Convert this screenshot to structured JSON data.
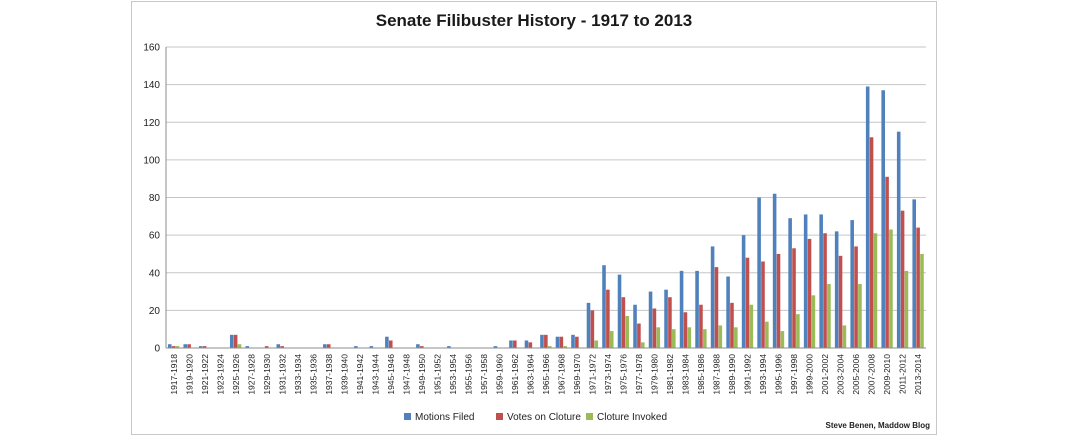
{
  "chart_data": {
    "type": "bar",
    "title": "Senate Filibuster History - 1917 to 2013",
    "xlabel": "",
    "ylabel": "",
    "ylim": [
      0,
      160
    ],
    "yticks": [
      "0",
      "20",
      "40",
      "60",
      "80",
      "100",
      "120",
      "140",
      "160"
    ],
    "grid": true,
    "legend_position": "bottom",
    "credit": "Steve Benen, Maddow Blog",
    "categories": [
      "1917-1918",
      "1919-1920",
      "1921-1922",
      "1923-1924",
      "1925-1926",
      "1927-1928",
      "1929-1930",
      "1931-1932",
      "1933-1934",
      "1935-1936",
      "1937-1938",
      "1939-1940",
      "1941-1942",
      "1943-1944",
      "1945-1946",
      "1947-1948",
      "1949-1950",
      "1951-1952",
      "1953-1954",
      "1955-1956",
      "1957-1958",
      "1959-1960",
      "1961-1962",
      "1963-1964",
      "1965-1966",
      "1967-1968",
      "1969-1970",
      "1971-1972",
      "1973-1974",
      "1975-1976",
      "1977-1978",
      "1979-1980",
      "1981-1982",
      "1983-1984",
      "1985-1986",
      "1987-1988",
      "1989-1990",
      "1991-1992",
      "1993-1994",
      "1995-1996",
      "1997-1998",
      "1999-2000",
      "2001-2002",
      "2003-2004",
      "2005-2006",
      "2007-2008",
      "2009-2010",
      "2011-2012",
      "2013-2014"
    ],
    "series": [
      {
        "name": "Motions Filed",
        "color": "#4f81bd",
        "values": [
          2,
          2,
          1,
          0,
          7,
          1,
          0,
          2,
          0,
          0,
          2,
          0,
          1,
          1,
          6,
          0,
          2,
          0,
          1,
          0,
          0,
          1,
          4,
          4,
          7,
          6,
          7,
          24,
          44,
          39,
          23,
          30,
          31,
          41,
          41,
          54,
          38,
          60,
          80,
          82,
          69,
          71,
          71,
          62,
          68,
          139,
          137,
          115,
          79
        ]
      },
      {
        "name": "Votes on Cloture",
        "color": "#c0504d",
        "values": [
          1,
          2,
          1,
          0,
          7,
          0,
          1,
          1,
          0,
          0,
          2,
          0,
          0,
          0,
          4,
          0,
          1,
          0,
          0,
          0,
          0,
          0,
          4,
          3,
          7,
          6,
          6,
          20,
          31,
          27,
          13,
          21,
          27,
          19,
          23,
          43,
          24,
          48,
          46,
          50,
          53,
          58,
          61,
          49,
          54,
          112,
          91,
          73,
          64
        ]
      },
      {
        "name": "Cloture Invoked",
        "color": "#9bbb59",
        "values": [
          1,
          0,
          0,
          0,
          2,
          0,
          0,
          0,
          0,
          0,
          0,
          0,
          0,
          0,
          0,
          0,
          0,
          0,
          0,
          0,
          0,
          0,
          0,
          0,
          1,
          1,
          0,
          4,
          9,
          17,
          3,
          11,
          10,
          11,
          10,
          12,
          11,
          23,
          14,
          9,
          18,
          28,
          34,
          12,
          34,
          61,
          63,
          41,
          50
        ]
      }
    ]
  }
}
